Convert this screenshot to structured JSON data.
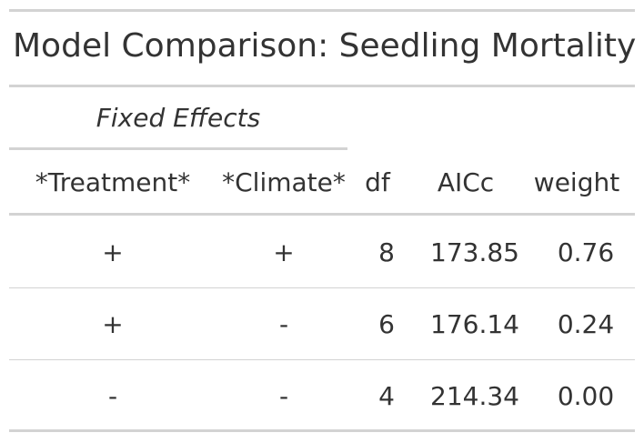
{
  "title": "Model Comparison: Seedling Mortality",
  "spanner": "Fixed Effects",
  "columns": [
    "*Treatment*",
    "*Climate*",
    "df",
    "AICc",
    "weight"
  ],
  "rows": [
    [
      "+",
      "+",
      "8",
      "173.85",
      "0.76"
    ],
    [
      "+",
      "-",
      "6",
      "176.14",
      "0.24"
    ],
    [
      "-",
      "-",
      "4",
      "214.34",
      "0.00"
    ]
  ],
  "colors": {
    "text": "#333333",
    "rule": "#d3d3d3"
  }
}
